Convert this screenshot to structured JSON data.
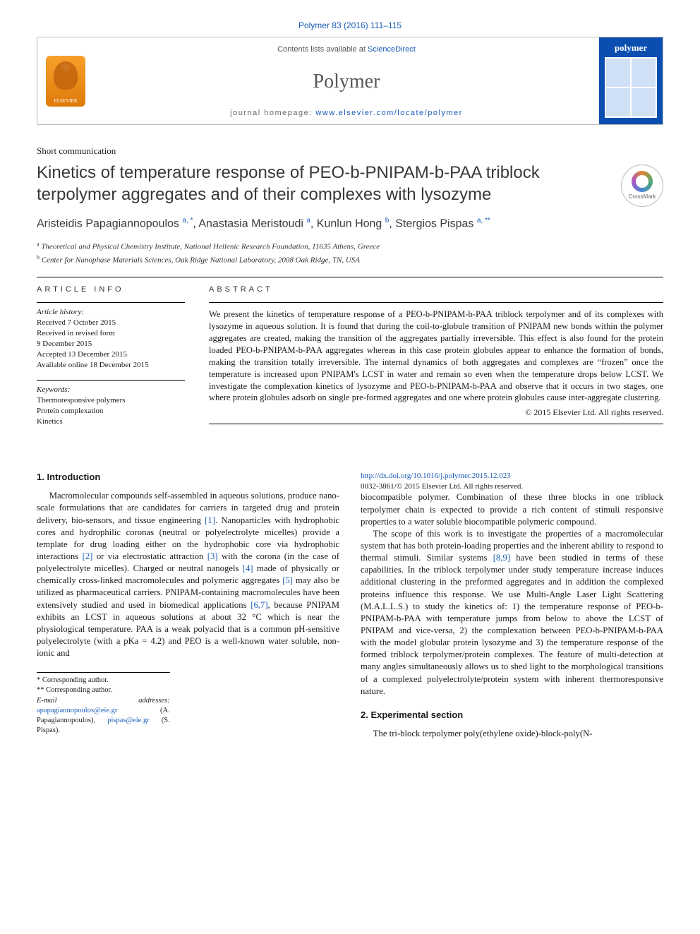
{
  "top_reference": {
    "journal": "Polymer",
    "volume_pages": "83 (2016) 111–115"
  },
  "banner": {
    "contents_prefix": "Contents lists available at ",
    "contents_link": "ScienceDirect",
    "journal_name": "Polymer",
    "homepage_prefix": "journal homepage: ",
    "homepage_url": "www.elsevier.com/locate/polymer",
    "publisher_label": "ELSEVIER",
    "cover_word": "polymer",
    "colors": {
      "cover_bg": "#0a4fb0",
      "link": "#1a5cb8"
    }
  },
  "article_type": "Short communication",
  "title": "Kinetics of temperature response of PEO-b-PNIPAM-b-PAA triblock terpolymer aggregates and of their complexes with lysozyme",
  "crossmark_label": "CrossMark",
  "authors_html": "Aristeidis Papagiannopoulos <sup>a, *</sup>, Anastasia Meristoudi <sup>a</sup>, Kunlun Hong <sup>b</sup>, Stergios Pispas <sup>a, **</sup>",
  "affiliations": [
    {
      "sup": "a",
      "text": "Theoretical and Physical Chemistry Institute, National Hellenic Research Foundation, 11635 Athens, Greece"
    },
    {
      "sup": "b",
      "text": "Center for Nanophase Materials Sciences, Oak Ridge National Laboratory, 2008 Oak Ridge, TN, USA"
    }
  ],
  "article_info": {
    "heading": "ARTICLE INFO",
    "history_label": "Article history:",
    "history": [
      "Received 7 October 2015",
      "Received in revised form",
      "9 December 2015",
      "Accepted 13 December 2015",
      "Available online 18 December 2015"
    ],
    "keywords_label": "Keywords:",
    "keywords": [
      "Thermoresponsive polymers",
      "Protein complexation",
      "Kinetics"
    ]
  },
  "abstract": {
    "heading": "ABSTRACT",
    "text": "We present the kinetics of temperature response of a PEO-b-PNIPAM-b-PAA triblock terpolymer and of its complexes with lysozyme in aqueous solution. It is found that during the coil-to-globule transition of PNIPAM new bonds within the polymer aggregates are created, making the transition of the aggregates partially irreversible. This effect is also found for the protein loaded PEO-b-PNIPAM-b-PAA aggregates whereas in this case protein globules appear to enhance the formation of bonds, making the transition totally irreversible. The internal dynamics of both aggregates and complexes are “frozen” once the temperature is increased upon PNIPAM's LCST in water and remain so even when the temperature drops below LCST. We investigate the complexation kinetics of lysozyme and PEO-b-PNIPAM-b-PAA and observe that it occurs in two stages, one where protein globules adsorb on single pre-formed aggregates and one where protein globules cause inter-aggregate clustering.",
    "copyright": "© 2015 Elsevier Ltd. All rights reserved."
  },
  "sections": {
    "s1_title": "1. Introduction",
    "s1_p1": "Macromolecular compounds self-assembled in aqueous solutions, produce nano-scale formulations that are candidates for carriers in targeted drug and protein delivery, bio-sensors, and tissue engineering [1]. Nanoparticles with hydrophobic cores and hydrophilic coronas (neutral or polyelectrolyte micelles) provide a template for drug loading either on the hydrophobic core via hydrophobic interactions [2] or via electrostatic attraction [3] with the corona (in the case of polyelectrolyte micelles). Charged or neutral nanogels [4] made of physically or chemically cross-linked macromolecules and polymeric aggregates [5] may also be utilized as pharmaceutical carriers. PNIPAM-containing macromolecules have been extensively studied and used in biomedical applications [6,7], because PNIPAM exhibits an LCST in aqueous solutions at about 32 °C which is near the physiological temperature. PAA is a weak polyacid that is a common pH-sensitive polyelectrolyte (with a pKa = 4.2) and PEO is a well-known water soluble, non-ionic and",
    "s1_p2": "biocompatible polymer. Combination of these three blocks in one triblock terpolymer chain is expected to provide a rich content of stimuli responsive properties to a water soluble biocompatible polymeric compound.",
    "s1_p3": "The scope of this work is to investigate the properties of a macromolecular system that has both protein-loading properties and the inherent ability to respond to thermal stimuli. Similar systems [8,9] have been studied in terms of these capabilities. In the triblock terpolymer under study temperature increase induces additional clustering in the preformed aggregates and in addition the complexed proteins influence this response. We use Multi-Angle Laser Light Scattering (M.A.L.L.S.) to study the kinetics of: 1) the temperature response of PEO-b-PNIPAM-b-PAA with temperature jumps from below to above the LCST of PNIPAM and vice-versa, 2) the complexation between PEO-b-PNIPAM-b-PAA with the model globular protein lysozyme and 3) the temperature response of the formed triblock terpolymer/protein complexes. The feature of multi-detection at many angles simultaneously allows us to shed light to the morphological transitions of a complexed polyelectrolyte/protein system with inherent thermoresponsive nature.",
    "s2_title": "2. Experimental section",
    "s2_p1": "The tri-block terpolymer poly(ethylene oxide)-block-poly(N-"
  },
  "footnotes": {
    "c1": "* Corresponding author.",
    "c2": "** Corresponding author.",
    "email_label": "E-mail addresses:",
    "email1": "apapagiannopoulos@eie.gr",
    "email1_who": " (A. Papagiannopoulos), ",
    "email2": "pispas@eie.gr",
    "email2_who": " (S. Pispas)."
  },
  "page_foot": {
    "doi": "http://dx.doi.org/10.1016/j.polymer.2015.12.023",
    "issn_line": "0032-3861/© 2015 Elsevier Ltd. All rights reserved."
  }
}
